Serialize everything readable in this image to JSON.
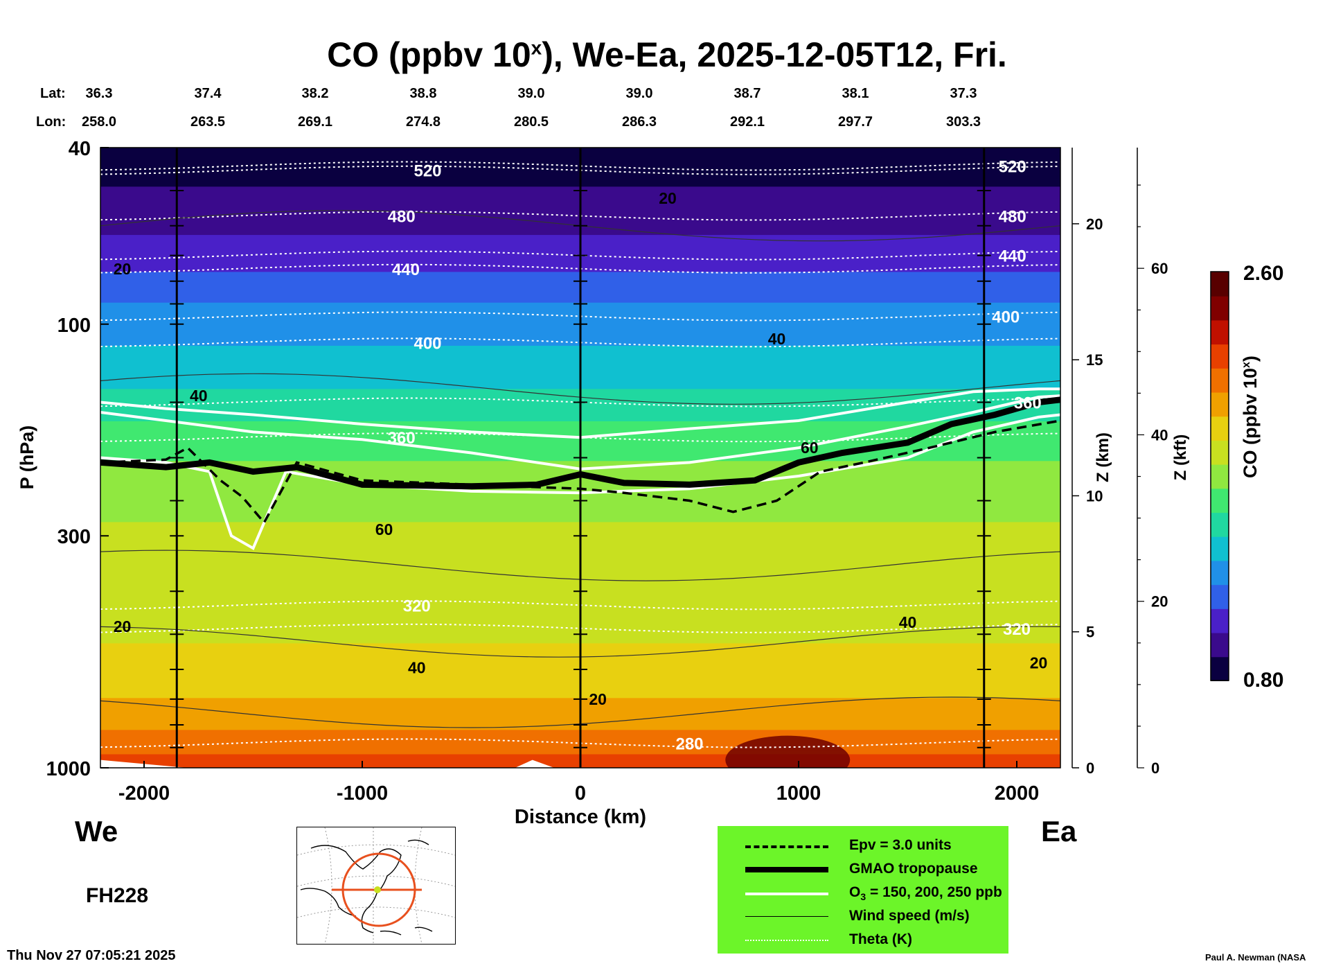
{
  "header": {
    "title_main": "CO (ppbv 10",
    "title_sup": "x",
    "title_rest": "), We-Ea, 2025-12-05T12, Fri.",
    "lat_label": "Lat:",
    "lon_label": "Lon:",
    "lats": [
      "36.3",
      "37.4",
      "38.2",
      "38.8",
      "39.0",
      "39.0",
      "38.7",
      "38.1",
      "37.3"
    ],
    "lons": [
      "258.0",
      "263.5",
      "269.1",
      "274.8",
      "280.5",
      "286.3",
      "292.1",
      "297.7",
      "303.3"
    ]
  },
  "footer": {
    "west_label": "We",
    "east_label": "Ea",
    "forecast_hour": "FH228",
    "timestamp": "Thu Nov 27 07:05:21 2025",
    "credit": "Paul A. Newman (NASA"
  },
  "legend": {
    "items": [
      {
        "label": "Epv = 3.0 units",
        "style": "dashed"
      },
      {
        "label": "GMAO tropopause",
        "style": "thick"
      },
      {
        "label": "O3 = 150, 200, 250 ppb",
        "style": "white"
      },
      {
        "label": "Wind speed (m/s)",
        "style": "thin"
      },
      {
        "label": "Theta (K)",
        "style": "dotted"
      }
    ]
  },
  "colorbar": {
    "max_label": "2.60",
    "min_label": "0.80",
    "label": "CO (ppbv 10",
    "label_sup": "x",
    "label_end": ")",
    "colors": [
      "#0a0040",
      "#3a0a8c",
      "#4a20c8",
      "#3060e8",
      "#2090e8",
      "#10c0d0",
      "#20d8a0",
      "#40e870",
      "#90e840",
      "#c8e020",
      "#e8d010",
      "#f0a000",
      "#f07000",
      "#e84000",
      "#c01000",
      "#800000",
      "#580000"
    ]
  },
  "chart_data": {
    "type": "heatmap",
    "title": "CO (ppbv 10^x), We-Ea, 2025-12-05T12, Fri.",
    "xlabel": "Distance (km)",
    "ylabel": "P (hPa)",
    "y2label": "Z (km)",
    "y3label": "Z (kft)",
    "xlim": [
      -2200,
      2200
    ],
    "ylim": [
      1000,
      40
    ],
    "y_scale": "log",
    "x_ticks": [
      -2000,
      -1000,
      0,
      1000,
      2000
    ],
    "x_tick_labels": [
      "-2000",
      "-1000",
      "0",
      "1000",
      "2000"
    ],
    "p_ticks": [
      40,
      100,
      300,
      1000
    ],
    "p_tick_labels": [
      "40",
      "100",
      "300",
      "1000"
    ],
    "z_km_ticks": [
      0,
      5,
      10,
      15,
      20
    ],
    "z_km_tick_labels": [
      "0",
      "5",
      "10",
      "15",
      "20"
    ],
    "z_kft_ticks": [
      0,
      20,
      40,
      60
    ],
    "z_kft_tick_labels": [
      "0",
      "20",
      "40",
      "60"
    ],
    "vertical_lines_km": [
      -1850,
      0,
      1850
    ],
    "co_color_range": [
      0.8,
      2.6
    ],
    "co_levels_by_pressure": [
      {
        "p": 40,
        "co": 0.85
      },
      {
        "p": 60,
        "co": 1.0
      },
      {
        "p": 80,
        "co": 1.15
      },
      {
        "p": 100,
        "co": 1.3
      },
      {
        "p": 140,
        "co": 1.45
      },
      {
        "p": 180,
        "co": 1.6
      },
      {
        "p": 260,
        "co": 1.75
      },
      {
        "p": 400,
        "co": 1.8
      },
      {
        "p": 600,
        "co": 1.9
      },
      {
        "p": 750,
        "co": 2.0
      },
      {
        "p": 900,
        "co": 2.15
      },
      {
        "p": 1000,
        "co": 2.3
      }
    ],
    "tropopause": {
      "x": [
        -2200,
        -1900,
        -1700,
        -1500,
        -1300,
        -1000,
        -500,
        -200,
        0,
        200,
        500,
        800,
        1000,
        1200,
        1500,
        1700,
        1900,
        2100,
        2200
      ],
      "p": [
        205,
        210,
        205,
        215,
        210,
        230,
        232,
        230,
        218,
        228,
        230,
        225,
        205,
        195,
        185,
        168,
        160,
        150,
        148
      ]
    },
    "epv_3": {
      "x": [
        -2200,
        -1900,
        -1800,
        -1650,
        -1550,
        -1450,
        -1300,
        -1000,
        -500,
        0,
        200,
        500,
        700,
        900,
        1100,
        1300,
        1600,
        1900,
        2200
      ],
      "p": [
        205,
        202,
        190,
        225,
        245,
        280,
        205,
        225,
        230,
        235,
        240,
        250,
        265,
        250,
        215,
        205,
        190,
        175,
        165
      ]
    },
    "o3_contours": [
      {
        "x": [
          -2200,
          -1900,
          -1500,
          -1000,
          -500,
          0,
          500,
          1000,
          1500,
          1800,
          2100,
          2200
        ],
        "p": [
          150,
          155,
          160,
          168,
          175,
          180,
          172,
          165,
          150,
          142,
          140,
          140
        ]
      },
      {
        "x": [
          -2200,
          -1900,
          -1500,
          -1000,
          -500,
          0,
          500,
          1000,
          1500,
          1800,
          2100,
          2200
        ],
        "p": [
          158,
          165,
          175,
          182,
          195,
          212,
          205,
          190,
          170,
          158,
          146,
          145
        ]
      },
      {
        "x": [
          -2200,
          -1900,
          -1700,
          -1600,
          -1500,
          -1350,
          -1000,
          -500,
          0,
          500,
          1000,
          1500,
          1800,
          2100,
          2200
        ],
        "p": [
          200,
          205,
          215,
          300,
          320,
          215,
          230,
          238,
          240,
          235,
          220,
          200,
          175,
          162,
          160
        ]
      }
    ],
    "theta_levels": [
      {
        "label": "280",
        "p": 880,
        "label_x": 500
      },
      {
        "label": "320",
        "p": 430,
        "label_x": -750
      },
      {
        "label": "360",
        "p": 180,
        "label_x": -820
      },
      {
        "label": "400",
        "p": 110,
        "label_x": -700
      },
      {
        "label": "440",
        "p": 75,
        "label_x": -800
      },
      {
        "label": "480",
        "p": 57,
        "label_x": -820
      },
      {
        "label": "520",
        "p": 45,
        "label_x": -700
      },
      {
        "label": "520",
        "p": 44,
        "label_x": 1980
      },
      {
        "label": "480",
        "p": 57,
        "label_x": 1980
      },
      {
        "label": "440",
        "p": 70,
        "label_x": 1980
      },
      {
        "label": "400",
        "p": 96,
        "label_x": 1950
      },
      {
        "label": "360",
        "p": 150,
        "label_x": 2050
      },
      {
        "label": "320",
        "p": 485,
        "label_x": 2000
      }
    ],
    "wind_labels": [
      {
        "label": "20",
        "x": -2100,
        "p": 75
      },
      {
        "label": "20",
        "x": 400,
        "p": 52
      },
      {
        "label": "40",
        "x": -1750,
        "p": 145
      },
      {
        "label": "40",
        "x": 900,
        "p": 108
      },
      {
        "label": "60",
        "x": 1050,
        "p": 190
      },
      {
        "label": "60",
        "x": -900,
        "p": 290
      },
      {
        "label": "40",
        "x": -750,
        "p": 595
      },
      {
        "label": "40",
        "x": 1500,
        "p": 470
      },
      {
        "label": "20",
        "x": -2100,
        "p": 480
      },
      {
        "label": "20",
        "x": 80,
        "p": 700
      },
      {
        "label": "20",
        "x": 2100,
        "p": 580
      }
    ]
  }
}
